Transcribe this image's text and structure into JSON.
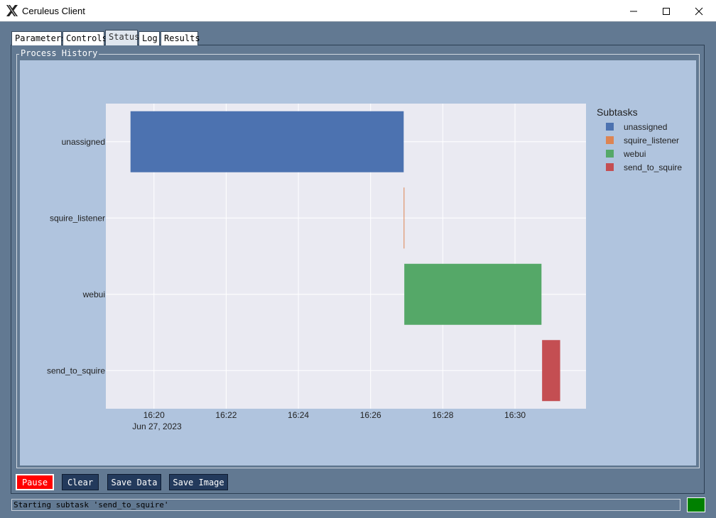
{
  "window": {
    "title": "Ceruleus Client",
    "app_icon": "x11-icon"
  },
  "tabs": [
    {
      "label": "Parameters",
      "active": false
    },
    {
      "label": "Controls",
      "active": false
    },
    {
      "label": "Status",
      "active": true
    },
    {
      "label": "Log",
      "active": false
    },
    {
      "label": "Results",
      "active": false
    }
  ],
  "group": {
    "label": "Process History"
  },
  "chart_data": {
    "type": "timeline",
    "legend_title": "Subtasks",
    "legend_position": "right",
    "grid": true,
    "categories": [
      "unassigned",
      "squire_listener",
      "webui",
      "send_to_squire"
    ],
    "colors": {
      "unassigned": "#4c72b0",
      "squire_listener": "#dd8452",
      "webui": "#55a868",
      "send_to_squire": "#c44e52"
    },
    "bars": [
      {
        "task": "unassigned",
        "start": "16:19:21",
        "end": "16:26:55"
      },
      {
        "task": "squire_listener",
        "start": "16:26:55",
        "end": "16:26:56"
      },
      {
        "task": "webui",
        "start": "16:26:56",
        "end": "16:30:44"
      },
      {
        "task": "send_to_squire",
        "start": "16:30:45",
        "end": "16:31:15"
      }
    ],
    "x_range": [
      "16:18:40",
      "16:31:58"
    ],
    "x_ticks": [
      "16:20",
      "16:22",
      "16:24",
      "16:26",
      "16:28",
      "16:30"
    ],
    "x_date_label": "Jun 27, 2023",
    "plot_bg": "#eaeaf2",
    "canvas_bg": "#b0c4de"
  },
  "buttons": {
    "pause": "Pause",
    "clear": "Clear",
    "save_data": "Save Data",
    "save_image": "Save Image"
  },
  "status": {
    "message": "Starting subtask 'send_to_squire'",
    "indicator_color": "#008000"
  }
}
